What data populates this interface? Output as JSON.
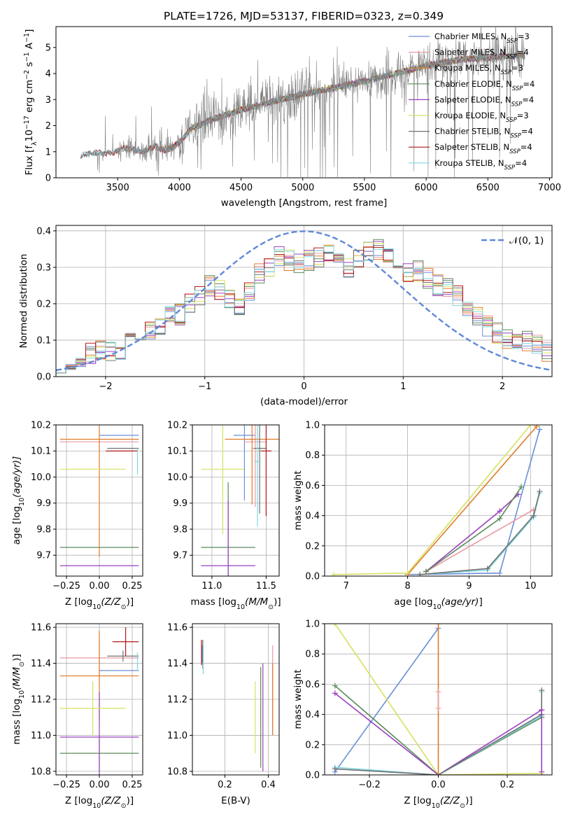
{
  "title": "PLATE=1726, MJD=53137, FIBERID=0323, z=0.349",
  "colors": {
    "Chabrier MILES": "#6a8fd8",
    "Salpeter MILES": "#e89aa5",
    "Kroupa MILES": "#e07b28",
    "Chabrier ELODIE": "#5a8a5a",
    "Salpeter ELODIE": "#9a40c0",
    "Kroupa ELODIE": "#d8e060",
    "Chabrier STELIB": "#707070",
    "Salpeter STELIB": "#b01818",
    "Kroupa STELIB": "#80d8e0",
    "data": "#808080",
    "normal": "#5f87d8"
  },
  "legend_spectrum": [
    {
      "imf": "Chabrier",
      "lib": "MILES",
      "n": "3"
    },
    {
      "imf": "Salpeter",
      "lib": "MILES",
      "n": "4"
    },
    {
      "imf": "Kroupa",
      "lib": "MILES",
      "n": "3"
    },
    {
      "imf": "Chabrier",
      "lib": "ELODIE",
      "n": "4"
    },
    {
      "imf": "Salpeter",
      "lib": "ELODIE",
      "n": "4"
    },
    {
      "imf": "Kroupa",
      "lib": "ELODIE",
      "n": "3"
    },
    {
      "imf": "Chabrier",
      "lib": "STELIB",
      "n": "4"
    },
    {
      "imf": "Salpeter",
      "lib": "STELIB",
      "n": "4"
    },
    {
      "imf": "Kroupa",
      "lib": "STELIB",
      "n": "4"
    }
  ],
  "legend_normal": "𝒩(0, 1)",
  "chart_data": [
    {
      "id": "spectrum",
      "type": "line",
      "xlabel": "wavelength [Angstrom, rest frame]",
      "ylabel_parts": [
        "Flux [f",
        "λ",
        "10",
        "−17",
        " erg cm",
        "−2",
        " s",
        "−1",
        " A",
        "−1",
        "]"
      ],
      "xlim": [
        3000,
        7020
      ],
      "ylim": [
        0,
        5.8
      ],
      "xticks": [
        3500,
        4000,
        4500,
        5000,
        5500,
        6000,
        6500,
        7000
      ],
      "yticks": [
        0,
        1,
        2,
        3,
        4,
        5
      ],
      "continuum": [
        [
          3200,
          0.85
        ],
        [
          3300,
          0.95
        ],
        [
          3450,
          0.95
        ],
        [
          3550,
          1.15
        ],
        [
          3700,
          1.0
        ],
        [
          3800,
          1.2
        ],
        [
          3900,
          1.05
        ],
        [
          4000,
          1.35
        ],
        [
          4100,
          1.9
        ],
        [
          4300,
          2.3
        ],
        [
          4500,
          2.6
        ],
        [
          4700,
          2.85
        ],
        [
          5000,
          3.2
        ],
        [
          5300,
          3.5
        ],
        [
          5500,
          3.7
        ],
        [
          5800,
          4.05
        ],
        [
          6000,
          4.3
        ],
        [
          6300,
          4.55
        ],
        [
          6500,
          4.6
        ],
        [
          6800,
          4.7
        ]
      ]
    },
    {
      "id": "residuals",
      "type": "line",
      "xlabel": "(data-model)/error",
      "ylabel": "Normed distribution",
      "xlim": [
        -2.5,
        2.5
      ],
      "ylim": [
        0,
        0.415
      ],
      "xticks": [
        -2,
        -1,
        0,
        1,
        2
      ],
      "yticks": [
        0.0,
        0.1,
        0.2,
        0.3,
        0.4
      ],
      "bin_edges_start": -2.5,
      "bin_width": 0.1,
      "bins": 50,
      "base_hist": [
        0.035,
        0.04,
        0.055,
        0.065,
        0.07,
        0.07,
        0.06,
        0.09,
        0.11,
        0.12,
        0.14,
        0.18,
        0.17,
        0.2,
        0.22,
        0.25,
        0.24,
        0.21,
        0.2,
        0.23,
        0.28,
        0.3,
        0.33,
        0.32,
        0.31,
        0.32,
        0.33,
        0.34,
        0.32,
        0.3,
        0.33,
        0.34,
        0.35,
        0.33,
        0.3,
        0.28,
        0.29,
        0.27,
        0.25,
        0.24,
        0.22,
        0.18,
        0.16,
        0.14,
        0.12,
        0.1,
        0.09,
        0.1,
        0.09,
        0.07
      ]
    },
    {
      "id": "age-vs-z",
      "type": "scatter",
      "xlabel_parts": [
        "Z [log",
        "10",
        "(Z/Z",
        "⊙",
        ")]"
      ],
      "ylabel_parts": [
        "age  [log",
        "10",
        "(age/yr)]"
      ],
      "xlim": [
        -0.33,
        0.33
      ],
      "ylim": [
        9.62,
        10.2
      ],
      "xticks": [
        -0.25,
        0.0,
        0.25
      ],
      "xticklabels": [
        "−0.25",
        "0.00",
        "0.25"
      ],
      "yticks": [
        9.7,
        9.8,
        9.9,
        10.0,
        10.1,
        10.2
      ],
      "points": [
        {
          "m": "Chabrier MILES",
          "x": 0.15,
          "xe": 0.15,
          "y": 10.16,
          "ye": 0.0
        },
        {
          "m": "Salpeter MILES",
          "x": 0.0,
          "xe": 0.3,
          "y": 10.135,
          "ye": 0.0
        },
        {
          "m": "Kroupa MILES",
          "x": 0.0,
          "xe": 0.3,
          "y": 10.145,
          "ye": 0.45
        },
        {
          "m": "Chabrier ELODIE",
          "x": 0.0,
          "xe": 0.3,
          "y": 9.73,
          "ye": 0.0
        },
        {
          "m": "Salpeter ELODIE",
          "x": 0.0,
          "xe": 0.3,
          "y": 9.66,
          "ye": 0.0
        },
        {
          "m": "Kroupa ELODIE",
          "x": -0.05,
          "xe": 0.25,
          "y": 10.03,
          "ye": 0.0
        },
        {
          "m": "Chabrier STELIB",
          "x": 0.18,
          "xe": 0.12,
          "y": 10.11,
          "ye": 0.0
        },
        {
          "m": "Salpeter STELIB",
          "x": 0.17,
          "xe": 0.12,
          "y": 10.1,
          "ye": 0.0
        },
        {
          "m": "Kroupa STELIB",
          "x": 0.29,
          "xe": 0.0,
          "y": 10.06,
          "ye": 0.05
        }
      ]
    }
  ]
}
